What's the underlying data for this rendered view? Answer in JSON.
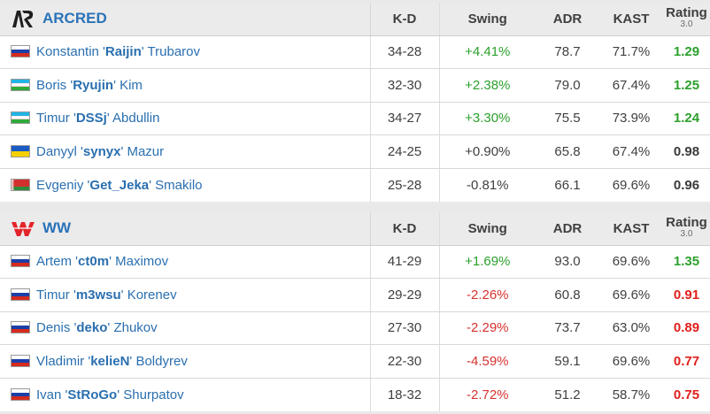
{
  "columns": {
    "kd": "K-D",
    "swing": "Swing",
    "adr": "ADR",
    "kast": "KAST",
    "rating": "Rating",
    "rating_version": "3.0"
  },
  "teams": [
    {
      "name": "ARCRED",
      "logo_icon": "arcred-logo-icon",
      "players": [
        {
          "first": "Konstantin",
          "nick": "Raijin",
          "last": "Trubarov",
          "flag": "russia-flag-icon",
          "kd": "34-28",
          "swing": "+4.41%",
          "swing_tone": "pos",
          "adr": "78.7",
          "kast": "71.7%",
          "rating": "1.29",
          "rating_tone": "good"
        },
        {
          "first": "Boris",
          "nick": "Ryujin",
          "last": "Kim",
          "flag": "uzbekistan-flag-icon",
          "kd": "32-30",
          "swing": "+2.38%",
          "swing_tone": "pos",
          "adr": "79.0",
          "kast": "67.4%",
          "rating": "1.25",
          "rating_tone": "good"
        },
        {
          "first": "Timur",
          "nick": "DSSj",
          "last": "Abdullin",
          "flag": "uzbekistan-flag-icon",
          "kd": "34-27",
          "swing": "+3.30%",
          "swing_tone": "pos",
          "adr": "75.5",
          "kast": "73.9%",
          "rating": "1.24",
          "rating_tone": "good"
        },
        {
          "first": "Danyyl",
          "nick": "synyx",
          "last": "Mazur",
          "flag": "ukraine-flag-icon",
          "kd": "24-25",
          "swing": "+0.90%",
          "swing_tone": "neu",
          "adr": "65.8",
          "kast": "67.4%",
          "rating": "0.98",
          "rating_tone": "neutral"
        },
        {
          "first": "Evgeniy",
          "nick": "Get_Jeka",
          "last": "Smakilo",
          "flag": "belarus-flag-icon",
          "kd": "25-28",
          "swing": "-0.81%",
          "swing_tone": "neu",
          "adr": "66.1",
          "kast": "69.6%",
          "rating": "0.96",
          "rating_tone": "neutral"
        }
      ]
    },
    {
      "name": "WW",
      "logo_icon": "ww-logo-icon",
      "players": [
        {
          "first": "Artem",
          "nick": "ct0m",
          "last": "Maximov",
          "flag": "russia-flag-icon",
          "kd": "41-29",
          "swing": "+1.69%",
          "swing_tone": "pos",
          "adr": "93.0",
          "kast": "69.6%",
          "rating": "1.35",
          "rating_tone": "good"
        },
        {
          "first": "Timur",
          "nick": "m3wsu",
          "last": "Korenev",
          "flag": "russia-flag-icon",
          "kd": "29-29",
          "swing": "-2.26%",
          "swing_tone": "neg",
          "adr": "60.8",
          "kast": "69.6%",
          "rating": "0.91",
          "rating_tone": "bad"
        },
        {
          "first": "Denis",
          "nick": "deko",
          "last": "Zhukov",
          "flag": "russia-flag-icon",
          "kd": "27-30",
          "swing": "-2.29%",
          "swing_tone": "neg",
          "adr": "73.7",
          "kast": "63.0%",
          "rating": "0.89",
          "rating_tone": "bad"
        },
        {
          "first": "Vladimir",
          "nick": "kelieN",
          "last": "Boldyrev",
          "flag": "russia-flag-icon",
          "kd": "22-30",
          "swing": "-4.59%",
          "swing_tone": "neg",
          "adr": "59.1",
          "kast": "69.6%",
          "rating": "0.77",
          "rating_tone": "bad"
        },
        {
          "first": "Ivan",
          "nick": "StRoGo",
          "last": "Shurpatov",
          "flag": "russia-flag-icon",
          "kd": "18-32",
          "swing": "-2.72%",
          "swing_tone": "neg",
          "adr": "51.2",
          "kast": "58.7%",
          "rating": "0.75",
          "rating_tone": "bad"
        }
      ]
    }
  ],
  "colors": {
    "accent": "#2a6fb0",
    "positive": "#2ca02c",
    "negative": "#d6322f",
    "rating_bad": "#e0201c"
  }
}
